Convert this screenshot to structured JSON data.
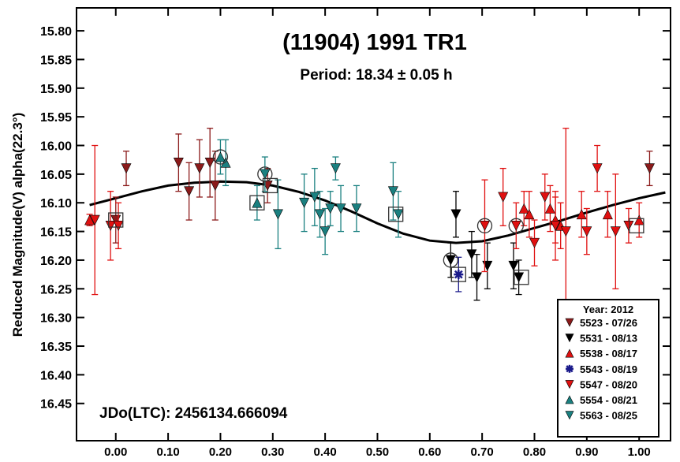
{
  "chart_data": {
    "type": "scatter",
    "title": "(11904) 1991 TR1",
    "subtitle": "Period: 18.34 ± 0.05 h",
    "ylabel": "Reduced Magnitude(V) alpha(22.3°)",
    "xlabel": "",
    "annotation": "JDo(LTC): 2456134.666094",
    "xlim": [
      -0.075,
      1.06
    ],
    "ylim": [
      15.76,
      16.515
    ],
    "y_inverted": true,
    "grid": false,
    "legend_position": "bottom-right",
    "legend_title": "Year: 2012",
    "x_ticks": [
      "0.00",
      "0.10",
      "0.20",
      "0.30",
      "0.40",
      "0.50",
      "0.60",
      "0.70",
      "0.80",
      "0.90",
      "1.00"
    ],
    "x_tick_values": [
      0,
      0.1,
      0.2,
      0.3,
      0.4,
      0.5,
      0.6,
      0.7,
      0.8,
      0.9,
      1.0
    ],
    "y_ticks": [
      "15.80",
      "15.85",
      "15.90",
      "15.95",
      "16.00",
      "16.05",
      "16.10",
      "16.15",
      "16.20",
      "16.25",
      "16.30",
      "16.35",
      "16.40",
      "16.45"
    ],
    "y_tick_values": [
      15.8,
      15.85,
      15.9,
      15.95,
      16.0,
      16.05,
      16.1,
      16.15,
      16.2,
      16.25,
      16.3,
      16.35,
      16.4,
      16.45
    ],
    "fit_curve": {
      "x": [
        -0.05,
        0.0,
        0.05,
        0.1,
        0.15,
        0.2,
        0.25,
        0.3,
        0.35,
        0.4,
        0.45,
        0.5,
        0.55,
        0.6,
        0.65,
        0.7,
        0.75,
        0.8,
        0.85,
        0.9,
        0.95,
        1.0,
        1.05
      ],
      "y": [
        16.104,
        16.092,
        16.08,
        16.07,
        16.065,
        16.063,
        16.064,
        16.07,
        16.081,
        16.096,
        16.115,
        16.136,
        16.154,
        16.166,
        16.17,
        16.167,
        16.157,
        16.144,
        16.131,
        16.117,
        16.104,
        16.092,
        16.082
      ]
    },
    "series": [
      {
        "name": "5523 - 07/26",
        "marker": "triangle-down",
        "color": "#8b1a1a",
        "points": [
          {
            "x": 0.0,
            "y": 16.13,
            "err": 0.04
          },
          {
            "x": 0.02,
            "y": 16.04,
            "err": 0.03
          },
          {
            "x": 0.12,
            "y": 16.03,
            "err": 0.05
          },
          {
            "x": 0.14,
            "y": 16.08,
            "err": 0.05
          },
          {
            "x": 0.16,
            "y": 16.04,
            "err": 0.05
          },
          {
            "x": 0.18,
            "y": 16.03,
            "err": 0.06
          },
          {
            "x": 0.19,
            "y": 16.07,
            "err": 0.06
          },
          {
            "x": 0.29,
            "y": 16.07,
            "err": 0.03
          },
          {
            "x": 1.02,
            "y": 16.04,
            "err": 0.03
          }
        ]
      },
      {
        "name": "5531 - 08/13",
        "marker": "triangle-down",
        "color": "#000000",
        "points": [
          {
            "x": 0.64,
            "y": 16.2,
            "err": 0.03
          },
          {
            "x": 0.65,
            "y": 16.12,
            "err": 0.04
          },
          {
            "x": 0.68,
            "y": 16.19,
            "err": 0.04
          },
          {
            "x": 0.69,
            "y": 16.23,
            "err": 0.04
          },
          {
            "x": 0.71,
            "y": 16.21,
            "err": 0.04
          },
          {
            "x": 0.76,
            "y": 16.21,
            "err": 0.04
          },
          {
            "x": 0.77,
            "y": 16.23,
            "err": 0.03
          }
        ]
      },
      {
        "name": "5538 - 08/17",
        "marker": "triangle-up",
        "color": "#e01010",
        "points": [
          {
            "x": -0.05,
            "y": 16.13,
            "err": 0.01
          },
          {
            "x": 0.78,
            "y": 16.11,
            "err": 0.03
          },
          {
            "x": 0.79,
            "y": 16.12,
            "err": 0.04
          },
          {
            "x": 0.83,
            "y": 16.11,
            "err": 0.04
          },
          {
            "x": 0.84,
            "y": 16.13,
            "err": 0.04
          },
          {
            "x": 0.85,
            "y": 16.14,
            "err": 0.04
          },
          {
            "x": 0.89,
            "y": 16.12,
            "err": 0.04
          },
          {
            "x": 0.94,
            "y": 16.12,
            "err": 0.04
          },
          {
            "x": 1.0,
            "y": 16.13,
            "err": 0.03
          }
        ]
      },
      {
        "name": "5543 - 08/19",
        "marker": "asterisk",
        "color": "#1a1a8b",
        "points": [
          {
            "x": 0.655,
            "y": 16.225,
            "err": 0.03
          }
        ]
      },
      {
        "name": "5547 - 08/20",
        "marker": "triangle-down",
        "color": "#e01010",
        "points": [
          {
            "x": -0.04,
            "y": 16.13,
            "err": 0.13
          },
          {
            "x": -0.01,
            "y": 16.14,
            "err": 0.06
          },
          {
            "x": 0.005,
            "y": 16.14,
            "err": 0.04
          },
          {
            "x": 0.705,
            "y": 16.14,
            "err": 0.08
          },
          {
            "x": 0.74,
            "y": 16.09,
            "err": 0.05
          },
          {
            "x": 0.765,
            "y": 16.14,
            "err": 0.04
          },
          {
            "x": 0.8,
            "y": 16.17,
            "err": 0.04
          },
          {
            "x": 0.82,
            "y": 16.09,
            "err": 0.04
          },
          {
            "x": 0.84,
            "y": 16.14,
            "err": 0.06
          },
          {
            "x": 0.86,
            "y": 16.15,
            "err": 0.18
          },
          {
            "x": 0.9,
            "y": 16.15,
            "err": 0.04
          },
          {
            "x": 0.92,
            "y": 16.04,
            "err": 0.04
          },
          {
            "x": 0.955,
            "y": 16.15,
            "err": 0.1
          },
          {
            "x": 0.98,
            "y": 16.14,
            "err": 0.03
          }
        ]
      },
      {
        "name": "5554 - 08/21",
        "marker": "triangle-up",
        "color": "#1a8080",
        "points": [
          {
            "x": 0.2,
            "y": 16.02,
            "err": 0.03
          },
          {
            "x": 0.21,
            "y": 16.03,
            "err": 0.04
          },
          {
            "x": 0.27,
            "y": 16.1,
            "err": 0.03
          }
        ]
      },
      {
        "name": "5563 - 08/25",
        "marker": "triangle-down",
        "color": "#1a8080",
        "points": [
          {
            "x": 0.285,
            "y": 16.05,
            "err": 0.03
          },
          {
            "x": 0.31,
            "y": 16.12,
            "err": 0.06
          },
          {
            "x": 0.36,
            "y": 16.1,
            "err": 0.05
          },
          {
            "x": 0.38,
            "y": 16.09,
            "err": 0.05
          },
          {
            "x": 0.39,
            "y": 16.12,
            "err": 0.04
          },
          {
            "x": 0.4,
            "y": 16.15,
            "err": 0.04
          },
          {
            "x": 0.41,
            "y": 16.11,
            "err": 0.03
          },
          {
            "x": 0.42,
            "y": 16.04,
            "err": 0.02
          },
          {
            "x": 0.43,
            "y": 16.11,
            "err": 0.04
          },
          {
            "x": 0.46,
            "y": 16.11,
            "err": 0.04
          },
          {
            "x": 0.53,
            "y": 16.08,
            "err": 0.05
          },
          {
            "x": 0.54,
            "y": 16.12,
            "err": 0.04
          }
        ]
      }
    ],
    "highlighted": [
      {
        "x": 0.0,
        "y": 16.13,
        "shape": "square"
      },
      {
        "x": 0.2,
        "y": 16.02,
        "shape": "circle"
      },
      {
        "x": 0.27,
        "y": 16.1,
        "shape": "square"
      },
      {
        "x": 0.285,
        "y": 16.05,
        "shape": "circle"
      },
      {
        "x": 0.295,
        "y": 16.07,
        "shape": "square"
      },
      {
        "x": 0.535,
        "y": 16.12,
        "shape": "square"
      },
      {
        "x": 0.64,
        "y": 16.2,
        "shape": "circle"
      },
      {
        "x": 0.655,
        "y": 16.225,
        "shape": "square"
      },
      {
        "x": 0.705,
        "y": 16.14,
        "shape": "circle"
      },
      {
        "x": 0.765,
        "y": 16.14,
        "shape": "circle"
      },
      {
        "x": 0.775,
        "y": 16.23,
        "shape": "square"
      },
      {
        "x": 0.995,
        "y": 16.14,
        "shape": "square"
      }
    ]
  }
}
